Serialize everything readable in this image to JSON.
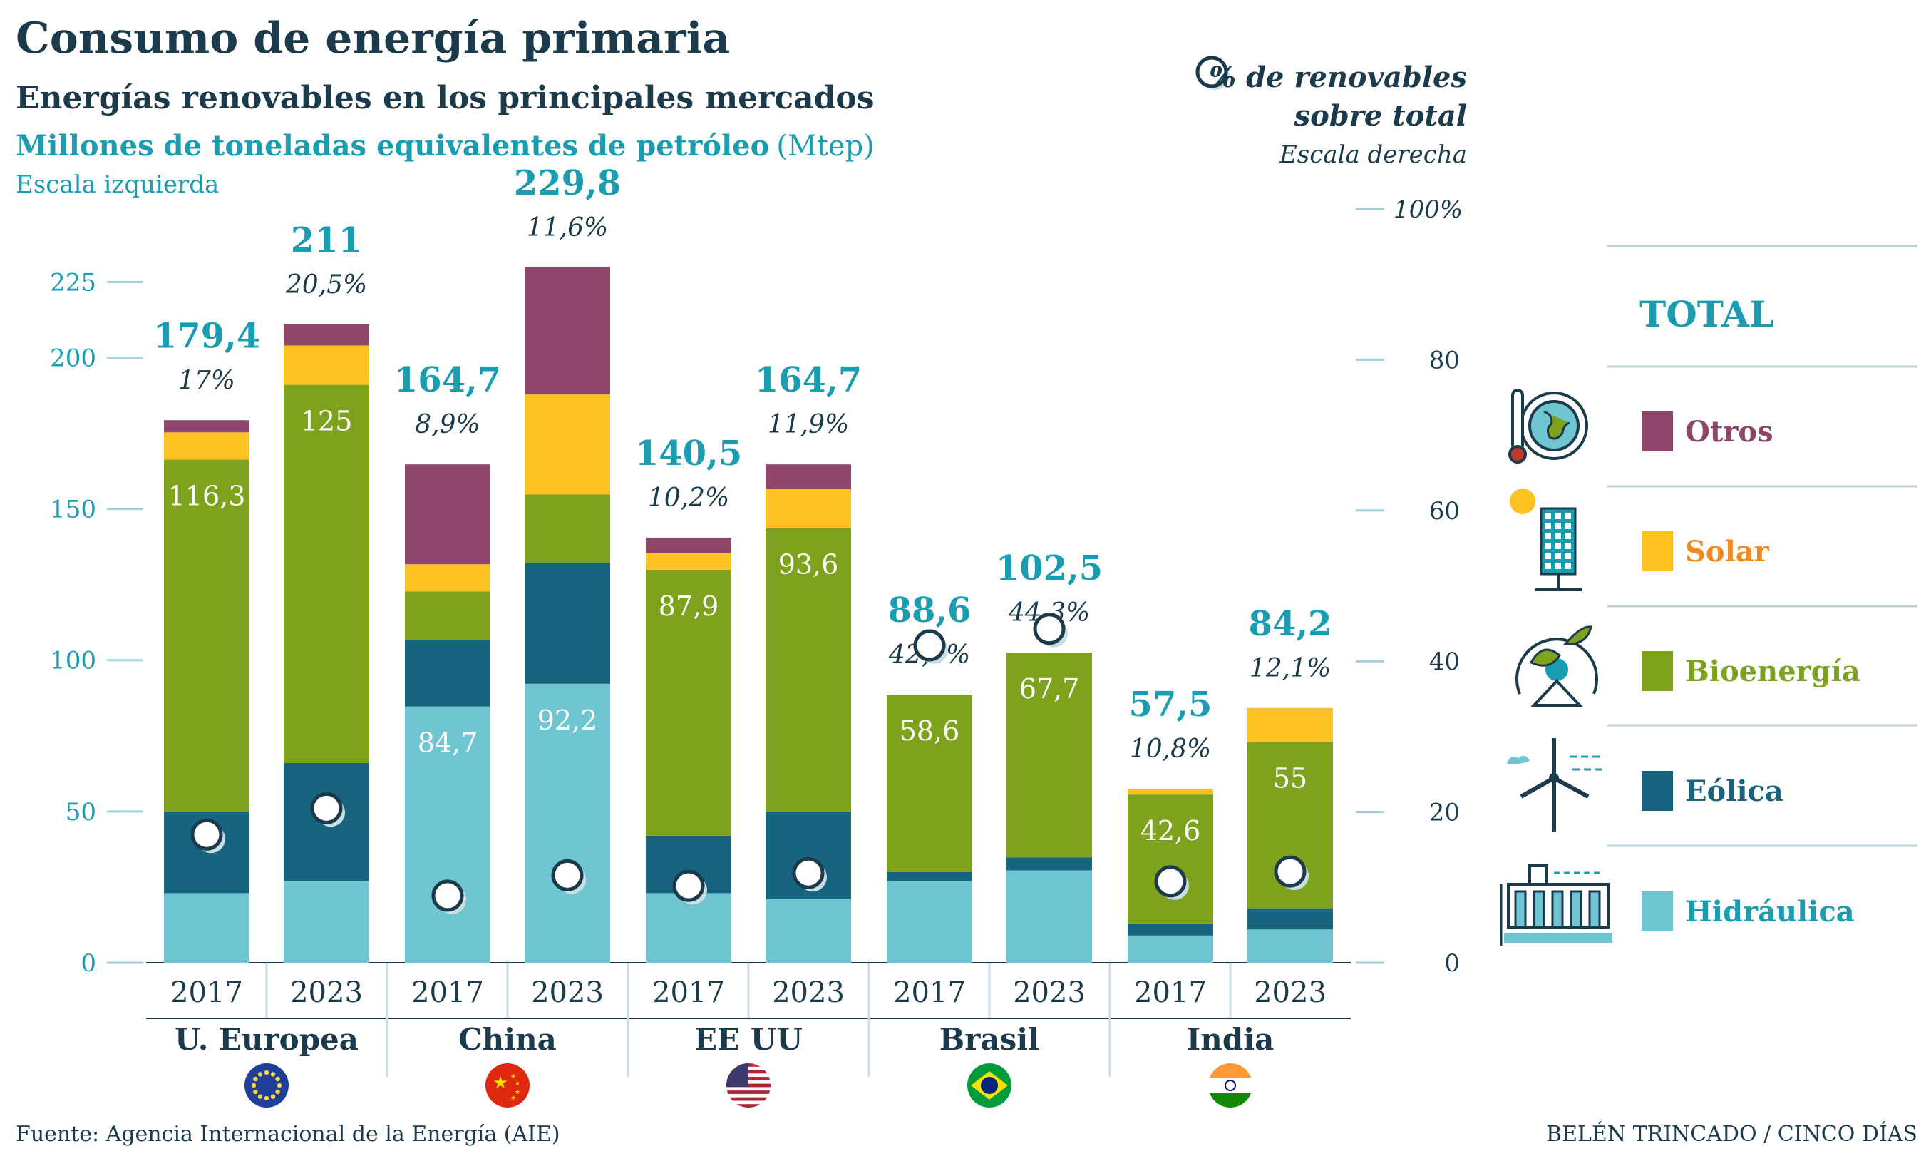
{
  "header": {
    "title": "Consumo de energía primaria",
    "subtitle": "Energías renovables en los principales mercados",
    "unit_main": "Millones de toneladas equivalentes de petróleo",
    "unit_abbr": "(Mtep)",
    "left_scale": "Escala izquierda",
    "pct_label_1": "% de renovables",
    "pct_label_2": "sobre total",
    "right_scale": "Escala derecha"
  },
  "legend": {
    "title": "TOTAL",
    "items": [
      {
        "label": "Otros",
        "color": "#8e466b",
        "icon": "thermometer-globe-icon"
      },
      {
        "label": "Solar",
        "color": "#fcc224",
        "text_color": "#f08a1c",
        "icon": "solar-panel-icon"
      },
      {
        "label": "Bioenergía",
        "color": "#7ea21e",
        "icon": "leaf-globe-icon"
      },
      {
        "label": "Eólica",
        "color": "#17647f",
        "icon": "wind-turbine-icon"
      },
      {
        "label": "Hidráulica",
        "color": "#6fc5d1",
        "text_color": "#1a9db0",
        "icon": "dam-icon"
      }
    ]
  },
  "footer": {
    "source": "Fuente: Agencia Internacional de la Energía (AIE)",
    "credit": "BELÉN TRINCADO / CINCO DÍAS"
  },
  "chart_data": {
    "type": "bar",
    "stacked": true,
    "left_axis": {
      "ticks": [
        0,
        50,
        100,
        150,
        200,
        225
      ],
      "ylim": [
        0,
        229.8
      ]
    },
    "right_axis": {
      "ticks": [
        "0",
        "20",
        "40",
        "60",
        "80",
        "100%"
      ],
      "ylim": [
        0,
        100
      ]
    },
    "groups": [
      {
        "name": "U. Europea",
        "flag": "eu-flag-icon",
        "years": [
          {
            "year": "2017",
            "total": "179,4",
            "pct_label": "17%",
            "pct": 17,
            "inner_label": "116,3",
            "segments": {
              "Hidráulica": 23,
              "Eólica": 27,
              "Bioenergía": 116.3,
              "Solar": 9,
              "Otros": 4
            }
          },
          {
            "year": "2023",
            "total": "211",
            "pct_label": "20,5%",
            "pct": 20.5,
            "inner_label": "125",
            "segments": {
              "Hidráulica": 27,
              "Eólica": 39,
              "Bioenergía": 125,
              "Solar": 13,
              "Otros": 7
            }
          }
        ]
      },
      {
        "name": "China",
        "flag": "cn-flag-icon",
        "years": [
          {
            "year": "2017",
            "total": "164,7",
            "pct_label": "8,9%",
            "pct": 8.9,
            "inner_label": "84,7",
            "segments": {
              "Hidráulica": 84.7,
              "Eólica": 22,
              "Bioenergía": 16,
              "Solar": 9,
              "Otros": 33
            }
          },
          {
            "year": "2023",
            "total": "229,8",
            "pct_label": "11,6%",
            "pct": 11.6,
            "inner_label": "92,2",
            "segments": {
              "Hidráulica": 92.2,
              "Eólica": 40,
              "Bioenergía": 22.6,
              "Solar": 33,
              "Otros": 42
            }
          }
        ]
      },
      {
        "name": "EE UU",
        "flag": "us-flag-icon",
        "years": [
          {
            "year": "2017",
            "total": "140,5",
            "pct_label": "10,2%",
            "pct": 10.2,
            "inner_label": "87,9",
            "segments": {
              "Hidráulica": 23,
              "Eólica": 19,
              "Bioenergía": 87.9,
              "Solar": 5.6,
              "Otros": 5
            }
          },
          {
            "year": "2023",
            "total": "164,7",
            "pct_label": "11,9%",
            "pct": 11.9,
            "inner_label": "93,6",
            "segments": {
              "Hidráulica": 21,
              "Eólica": 29,
              "Bioenergía": 93.6,
              "Solar": 13,
              "Otros": 8.1
            }
          }
        ]
      },
      {
        "name": "Brasil",
        "flag": "br-flag-icon",
        "years": [
          {
            "year": "2017",
            "total": "88,6",
            "pct_label": "42,1%",
            "pct": 42.1,
            "inner_label": "58,6",
            "segments": {
              "Hidráulica": 27,
              "Eólica": 3,
              "Bioenergía": 58.6,
              "Solar": 0,
              "Otros": 0
            }
          },
          {
            "year": "2023",
            "total": "102,5",
            "pct_label": "44,3%",
            "pct": 44.3,
            "inner_label": "67,7",
            "segments": {
              "Hidráulica": 30.5,
              "Eólica": 4.3,
              "Bioenergía": 67.7,
              "Solar": 0,
              "Otros": 0
            }
          }
        ]
      },
      {
        "name": "India",
        "flag": "in-flag-icon",
        "years": [
          {
            "year": "2017",
            "total": "57,5",
            "pct_label": "10,8%",
            "pct": 10.8,
            "inner_label": "42,6",
            "segments": {
              "Hidráulica": 9,
              "Eólica": 4,
              "Bioenergía": 42.6,
              "Solar": 1.9,
              "Otros": 0
            }
          },
          {
            "year": "2023",
            "total": "84,2",
            "pct_label": "12,1%",
            "pct": 12.1,
            "inner_label": "55",
            "segments": {
              "Hidráulica": 11,
              "Eólica": 7,
              "Bioenergía": 55,
              "Solar": 11.2,
              "Otros": 0
            }
          }
        ]
      }
    ]
  }
}
